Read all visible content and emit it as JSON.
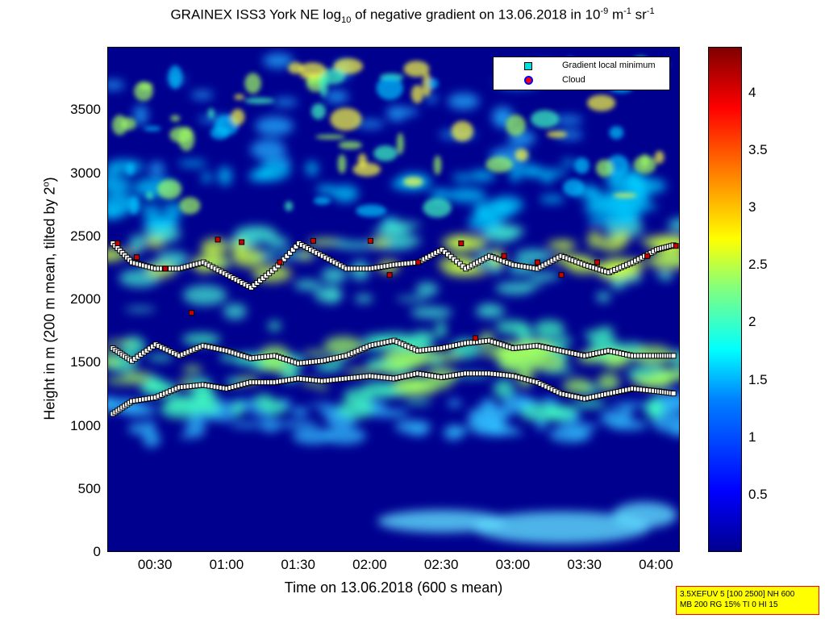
{
  "title": {
    "prefix": "GRAINEX ISS3 York NE log",
    "sub": "10",
    "mid": " of negative gradient on 13.06.2018 in 10",
    "sup1": "-9",
    "unit1": " m",
    "sup2": "-1",
    "unit2": " sr",
    "sup3": "-1"
  },
  "ylabel": {
    "main": "Height in m (200 m mean, tilted by 2",
    "sup": "o",
    "end": ")"
  },
  "xlabel": "Time on 13.06.2018 (600 s mean)",
  "legend": {
    "items": [
      {
        "label": "Gradient local minimum",
        "color": "#00e0e0",
        "marker": "square"
      },
      {
        "label": "Cloud",
        "color": "#ff0000",
        "edge": "#0000ff",
        "marker": "circle"
      }
    ]
  },
  "infobox": {
    "line1": "3.5XEFUV 5 [100 2500] NH 600",
    "line2": "MB 200 RG 15% TI 0 HI 15"
  },
  "chart_data": {
    "type": "heatmap",
    "x_ticks": [
      "00:30",
      "01:00",
      "01:30",
      "02:00",
      "02:30",
      "03:00",
      "03:30",
      "04:00"
    ],
    "xlim_minutes": [
      10,
      250
    ],
    "x_tick_minutes": [
      30,
      60,
      90,
      120,
      150,
      180,
      210,
      240
    ],
    "y_ticks": [
      0,
      500,
      1000,
      1500,
      2000,
      2500,
      3000,
      3500
    ],
    "ylim": [
      0,
      4000
    ],
    "colorbar_ticks": [
      0.5,
      1,
      1.5,
      2,
      2.5,
      3,
      3.5,
      4
    ],
    "clim": [
      0,
      4.4
    ],
    "colormap": "jet",
    "layers": [
      {
        "name": "Gradient local minimum track low",
        "points": [
          [
            12,
            1100
          ],
          [
            20,
            1200
          ],
          [
            30,
            1230
          ],
          [
            40,
            1310
          ],
          [
            50,
            1330
          ],
          [
            60,
            1300
          ],
          [
            70,
            1350
          ],
          [
            80,
            1350
          ],
          [
            90,
            1380
          ],
          [
            100,
            1360
          ],
          [
            110,
            1380
          ],
          [
            120,
            1400
          ],
          [
            130,
            1380
          ],
          [
            140,
            1420
          ],
          [
            150,
            1390
          ],
          [
            160,
            1420
          ],
          [
            170,
            1420
          ],
          [
            180,
            1400
          ],
          [
            190,
            1350
          ],
          [
            200,
            1260
          ],
          [
            210,
            1220
          ],
          [
            220,
            1260
          ],
          [
            230,
            1300
          ],
          [
            240,
            1280
          ],
          [
            248,
            1260
          ]
        ]
      },
      {
        "name": "Gradient local minimum track mid",
        "points": [
          [
            12,
            1620
          ],
          [
            20,
            1520
          ],
          [
            30,
            1650
          ],
          [
            40,
            1560
          ],
          [
            50,
            1640
          ],
          [
            60,
            1600
          ],
          [
            70,
            1540
          ],
          [
            80,
            1560
          ],
          [
            90,
            1500
          ],
          [
            100,
            1520
          ],
          [
            110,
            1560
          ],
          [
            120,
            1640
          ],
          [
            130,
            1680
          ],
          [
            140,
            1600
          ],
          [
            150,
            1620
          ],
          [
            160,
            1660
          ],
          [
            170,
            1680
          ],
          [
            180,
            1620
          ],
          [
            190,
            1640
          ],
          [
            200,
            1600
          ],
          [
            210,
            1560
          ],
          [
            220,
            1600
          ],
          [
            230,
            1560
          ],
          [
            240,
            1560
          ],
          [
            248,
            1560
          ]
        ]
      },
      {
        "name": "Gradient local minimum track high",
        "points": [
          [
            12,
            2450
          ],
          [
            20,
            2300
          ],
          [
            30,
            2250
          ],
          [
            40,
            2250
          ],
          [
            50,
            2300
          ],
          [
            60,
            2200
          ],
          [
            70,
            2100
          ],
          [
            80,
            2250
          ],
          [
            90,
            2450
          ],
          [
            100,
            2350
          ],
          [
            110,
            2250
          ],
          [
            120,
            2250
          ],
          [
            130,
            2280
          ],
          [
            140,
            2300
          ],
          [
            150,
            2400
          ],
          [
            160,
            2250
          ],
          [
            170,
            2350
          ],
          [
            180,
            2280
          ],
          [
            190,
            2250
          ],
          [
            200,
            2350
          ],
          [
            210,
            2280
          ],
          [
            220,
            2220
          ],
          [
            230,
            2300
          ],
          [
            240,
            2400
          ],
          [
            248,
            2440
          ]
        ]
      },
      {
        "name": "Cloud",
        "points": [
          [
            14,
            2450
          ],
          [
            22,
            2340
          ],
          [
            34,
            2250
          ],
          [
            45,
            1900
          ],
          [
            56,
            2480
          ],
          [
            66,
            2460
          ],
          [
            82,
            2300
          ],
          [
            96,
            2470
          ],
          [
            120,
            2470
          ],
          [
            128,
            2200
          ],
          [
            140,
            2300
          ],
          [
            158,
            2450
          ],
          [
            164,
            1700
          ],
          [
            176,
            2350
          ],
          [
            190,
            2300
          ],
          [
            200,
            2200
          ],
          [
            215,
            2300
          ],
          [
            236,
            2350
          ],
          [
            248,
            2430
          ]
        ]
      }
    ]
  }
}
